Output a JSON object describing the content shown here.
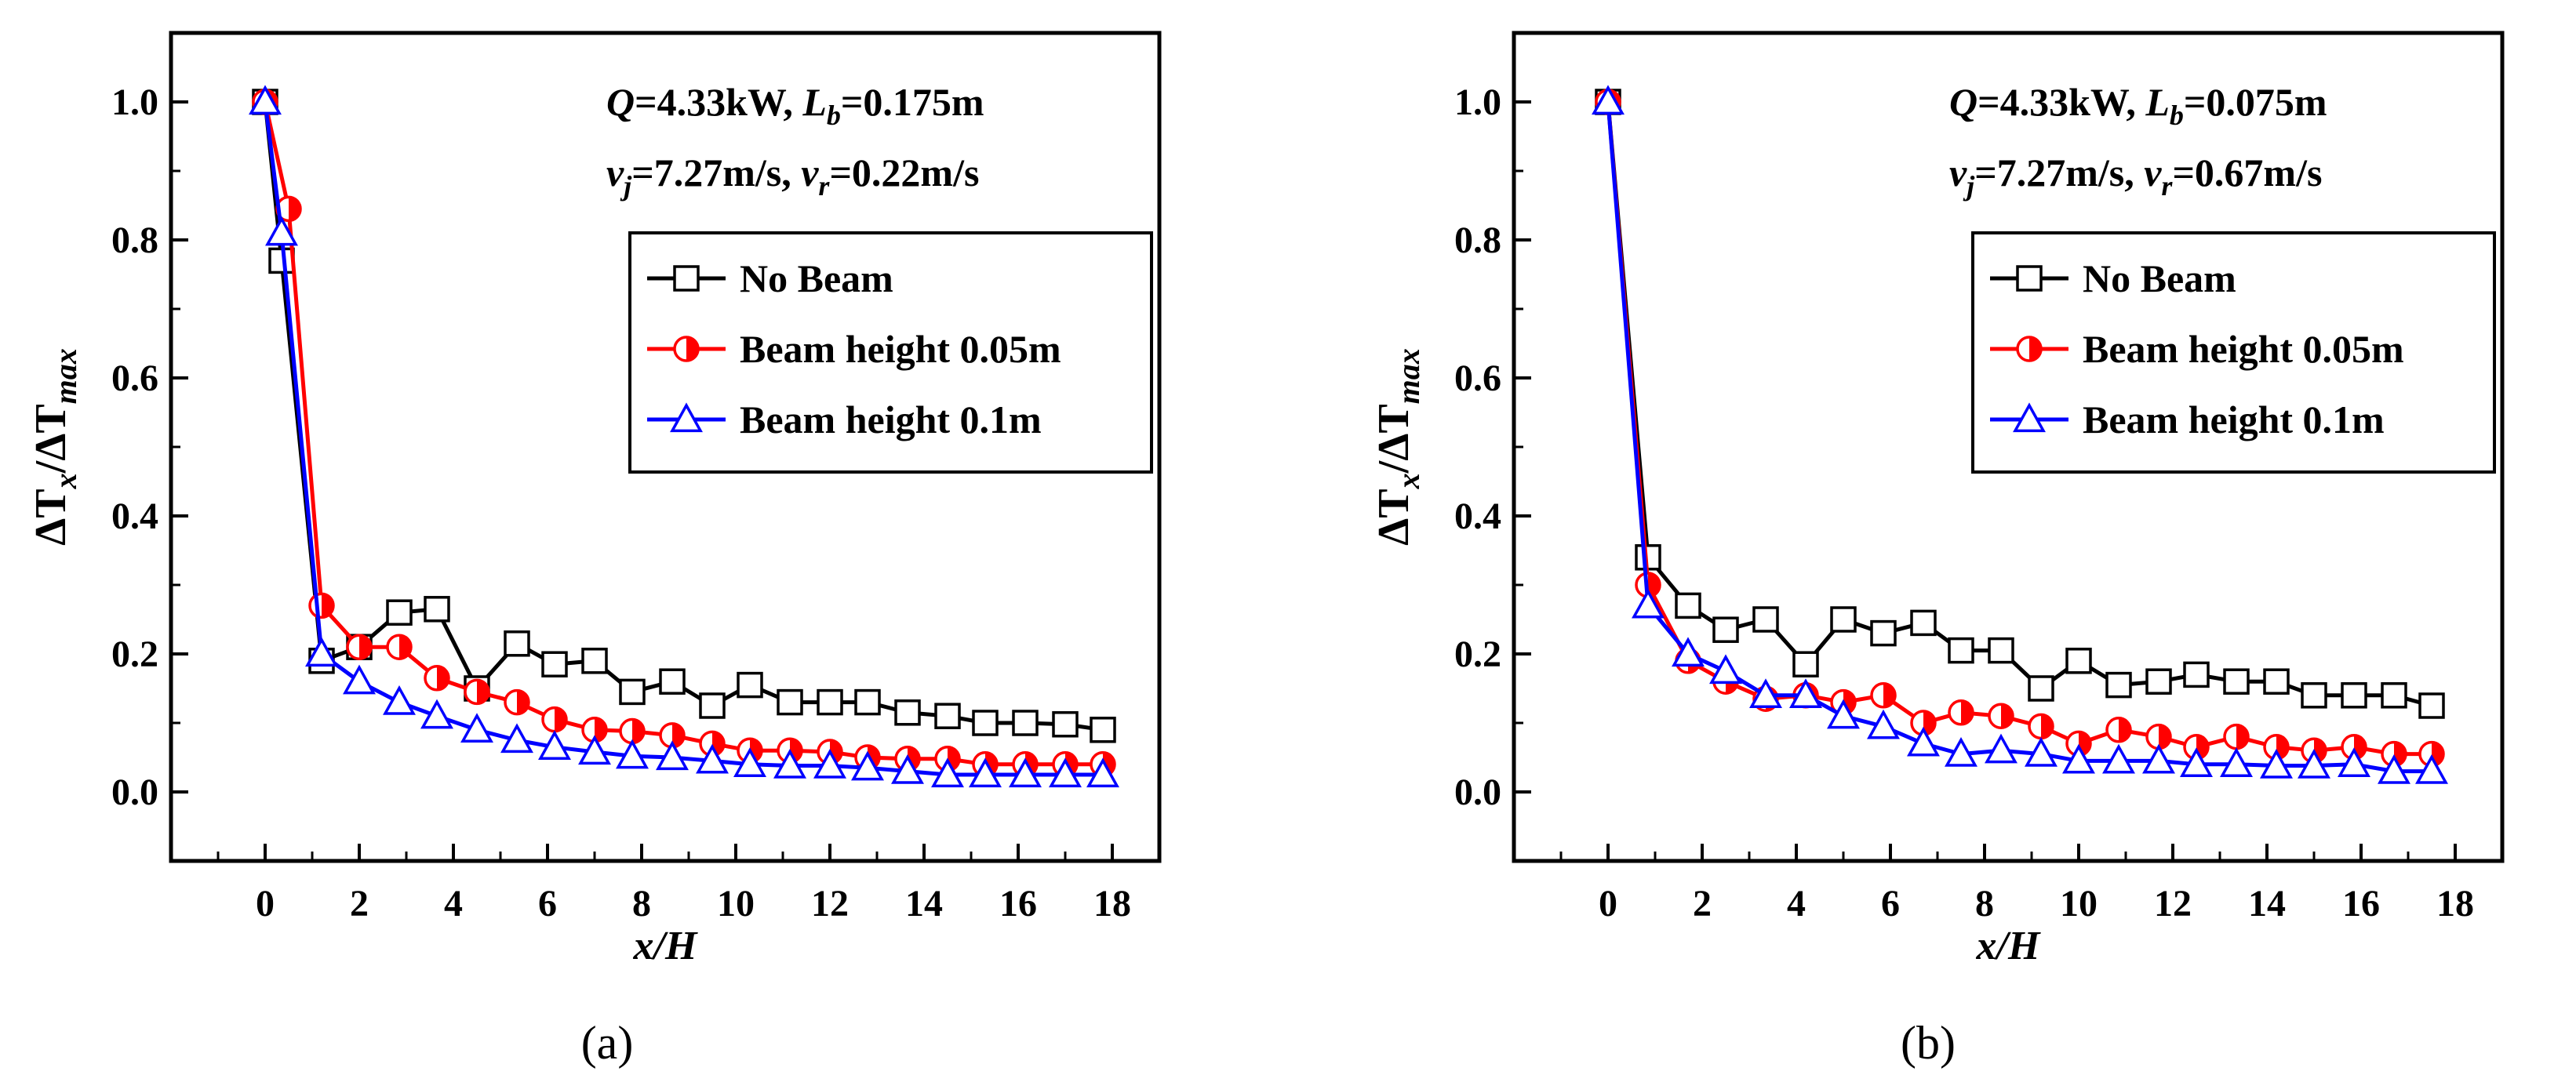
{
  "chart_data": [
    {
      "type": "line",
      "panel_label": "(a)",
      "xlabel": "x/H",
      "ylabel": "ΔTx/ΔTmax",
      "xlim": [
        -2,
        19
      ],
      "ylim": [
        -0.1,
        1.1
      ],
      "x_ticks": [
        0,
        2,
        4,
        6,
        8,
        10,
        12,
        14,
        16,
        18
      ],
      "y_ticks": [
        0.0,
        0.2,
        0.4,
        0.6,
        0.8,
        1.0
      ],
      "annotation_line1": {
        "Q": "Q",
        "Q_value": "=4.33kW, ",
        "L": "L",
        "L_sub": "b",
        "L_value": "=0.175m"
      },
      "annotation_line2": {
        "v1": "v",
        "v1_sub": "j",
        "v1_value": "=7.27m/s, ",
        "v2": "v",
        "v2_sub": "r",
        "v2_value": "=0.22m/s"
      },
      "legend_position": "right",
      "series": [
        {
          "name": "No Beam",
          "color": "#000000",
          "marker": "square",
          "x": [
            0,
            0.35,
            1.2,
            2.0,
            2.85,
            3.65,
            4.5,
            5.35,
            6.15,
            7.0,
            7.8,
            8.65,
            9.5,
            10.3,
            11.15,
            12.0,
            12.8,
            13.65,
            14.5,
            15.3,
            16.15,
            17.0,
            17.8
          ],
          "y": [
            1.0,
            0.77,
            0.19,
            0.21,
            0.26,
            0.265,
            0.15,
            0.215,
            0.185,
            0.19,
            0.145,
            0.16,
            0.125,
            0.155,
            0.13,
            0.13,
            0.13,
            0.115,
            0.11,
            0.1,
            0.1,
            0.098,
            0.09
          ]
        },
        {
          "name": "Beam height 0.05m",
          "color": "#ff0000",
          "marker": "circle",
          "x": [
            0,
            0.5,
            1.2,
            2.0,
            2.85,
            3.65,
            4.5,
            5.35,
            6.15,
            7.0,
            7.8,
            8.65,
            9.5,
            10.3,
            11.15,
            12.0,
            12.8,
            13.65,
            14.5,
            15.3,
            16.15,
            17.0,
            17.8
          ],
          "y": [
            1.0,
            0.845,
            0.27,
            0.21,
            0.21,
            0.165,
            0.145,
            0.13,
            0.105,
            0.09,
            0.088,
            0.082,
            0.07,
            0.06,
            0.06,
            0.058,
            0.05,
            0.048,
            0.048,
            0.04,
            0.04,
            0.04,
            0.04
          ]
        },
        {
          "name": "Beam height 0.1m",
          "color": "#0000ff",
          "marker": "triangle",
          "x": [
            0,
            0.35,
            1.2,
            2.0,
            2.85,
            3.65,
            4.5,
            5.35,
            6.15,
            7.0,
            7.8,
            8.65,
            9.5,
            10.3,
            11.15,
            12.0,
            12.8,
            13.65,
            14.5,
            15.3,
            16.15,
            17.0,
            17.8
          ],
          "y": [
            1.0,
            0.81,
            0.2,
            0.16,
            0.13,
            0.11,
            0.09,
            0.075,
            0.065,
            0.058,
            0.052,
            0.05,
            0.045,
            0.04,
            0.038,
            0.038,
            0.035,
            0.03,
            0.025,
            0.025,
            0.025,
            0.025,
            0.025
          ]
        }
      ]
    },
    {
      "type": "line",
      "panel_label": "(b)",
      "xlabel": "x/H",
      "ylabel": "ΔTx/ΔTmax",
      "xlim": [
        -2,
        19
      ],
      "ylim": [
        -0.1,
        1.1
      ],
      "x_ticks": [
        0,
        2,
        4,
        6,
        8,
        10,
        12,
        14,
        16,
        18
      ],
      "y_ticks": [
        0.0,
        0.2,
        0.4,
        0.6,
        0.8,
        1.0
      ],
      "annotation_line1": {
        "Q": "Q",
        "Q_value": "=4.33kW, ",
        "L": "L",
        "L_sub": "b",
        "L_value": "=0.075m"
      },
      "annotation_line2": {
        "v1": "v",
        "v1_sub": "j",
        "v1_value": "=7.27m/s, ",
        "v2": "v",
        "v2_sub": "r",
        "v2_value": "=0.67m/s"
      },
      "legend_position": "right",
      "series": [
        {
          "name": "No Beam",
          "color": "#000000",
          "marker": "square",
          "x": [
            0,
            0.85,
            1.7,
            2.5,
            3.35,
            4.2,
            5.0,
            5.85,
            6.7,
            7.5,
            8.35,
            9.2,
            10.0,
            10.85,
            11.7,
            12.5,
            13.35,
            14.2,
            15.0,
            15.85,
            16.7,
            17.5
          ],
          "y": [
            1.0,
            0.34,
            0.27,
            0.235,
            0.25,
            0.185,
            0.25,
            0.23,
            0.245,
            0.205,
            0.205,
            0.15,
            0.19,
            0.155,
            0.16,
            0.17,
            0.16,
            0.16,
            0.14,
            0.14,
            0.14,
            0.125
          ]
        },
        {
          "name": "Beam height 0.05m",
          "color": "#ff0000",
          "marker": "circle",
          "x": [
            0,
            0.85,
            1.7,
            2.5,
            3.35,
            4.2,
            5.0,
            5.85,
            6.7,
            7.5,
            8.35,
            9.2,
            10.0,
            10.85,
            11.7,
            12.5,
            13.35,
            14.2,
            15.0,
            15.85,
            16.7,
            17.5
          ],
          "y": [
            1.0,
            0.3,
            0.19,
            0.16,
            0.135,
            0.14,
            0.13,
            0.14,
            0.1,
            0.115,
            0.11,
            0.095,
            0.07,
            0.09,
            0.08,
            0.065,
            0.08,
            0.065,
            0.06,
            0.065,
            0.055,
            0.055
          ]
        },
        {
          "name": "Beam height 0.1m",
          "color": "#0000ff",
          "marker": "triangle",
          "x": [
            0,
            0.85,
            1.7,
            2.5,
            3.35,
            4.2,
            5.0,
            5.85,
            6.7,
            7.5,
            8.35,
            9.2,
            10.0,
            10.85,
            11.7,
            12.5,
            13.35,
            14.2,
            15.0,
            15.85,
            16.7,
            17.5
          ],
          "y": [
            1.0,
            0.27,
            0.2,
            0.175,
            0.14,
            0.14,
            0.11,
            0.095,
            0.07,
            0.055,
            0.06,
            0.055,
            0.045,
            0.045,
            0.045,
            0.04,
            0.04,
            0.038,
            0.038,
            0.04,
            0.03,
            0.03
          ]
        }
      ]
    }
  ]
}
